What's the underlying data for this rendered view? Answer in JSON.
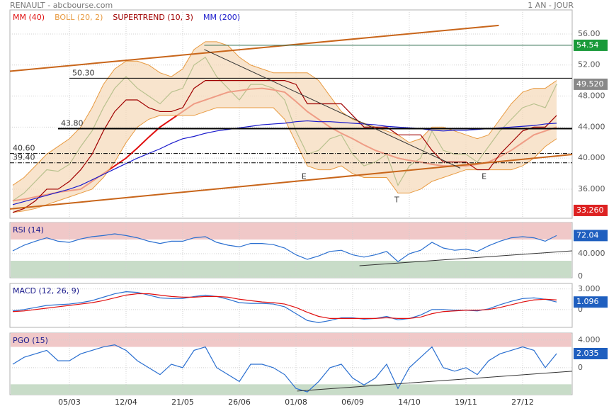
{
  "header": {
    "title": "RENAULT - abcbourse.com",
    "period": "1 AN - JOUR"
  },
  "chart_data": [
    {
      "type": "line",
      "x": [
        0,
        1,
        2,
        3,
        4,
        5,
        6,
        7,
        8,
        9,
        10,
        11,
        12,
        13,
        14,
        15,
        16,
        17,
        18,
        19,
        20,
        21,
        22,
        23,
        24,
        25,
        26,
        27,
        28,
        29,
        30,
        31,
        32,
        33,
        34,
        35,
        36,
        37,
        38,
        39,
        40,
        41,
        42,
        43,
        44,
        45,
        46,
        47,
        48
      ],
      "xlim": [
        -0.25,
        49.375
      ],
      "xticks": [
        {
          "value": 5,
          "label": "05/03"
        },
        {
          "value": 10,
          "label": "12/04"
        },
        {
          "value": 15,
          "label": "21/05"
        },
        {
          "value": 20,
          "label": "26/06"
        },
        {
          "value": 25,
          "label": "01/08"
        },
        {
          "value": 30,
          "label": "06/09"
        },
        {
          "value": 35,
          "label": "14/10"
        },
        {
          "value": 40,
          "label": "19/11"
        },
        {
          "value": 45,
          "label": "27/12"
        }
      ],
      "ylim": [
        32.25,
        59.1
      ],
      "yticks": [
        {
          "value": 36,
          "label": "36.000"
        },
        {
          "value": 40,
          "label": "40.000"
        },
        {
          "value": 44,
          "label": "44.000"
        },
        {
          "value": 48,
          "label": "48.000"
        },
        {
          "value": 52,
          "label": "52.00"
        },
        {
          "value": 56,
          "label": "56.00"
        }
      ],
      "grid": true,
      "series": [
        {
          "color": "#2e8b2e",
          "values": [
            34.5,
            35.5,
            37,
            38.5,
            38.3,
            39.2,
            41.5,
            43.5,
            46.5,
            49,
            50.5,
            49,
            48,
            47,
            48.5,
            49,
            52,
            53,
            50.5,
            49,
            47.5,
            49.5,
            49.5,
            49,
            47.5,
            43.5,
            40.5,
            41,
            42.5,
            43,
            40.5,
            39,
            39.5,
            40.5,
            36.5,
            39,
            40,
            43.5,
            41,
            40.5,
            40.5,
            39.5,
            41.5,
            43.5,
            45,
            46.5,
            47,
            46.5,
            49.52
          ]
        },
        {
          "name": "MM (40)",
          "color": "#e01010",
          "values": [
            34.5,
            34.7,
            35,
            35.3,
            35.6,
            35.8,
            36,
            37,
            38,
            39,
            40,
            41.3,
            42.7,
            44,
            45,
            46,
            47,
            47.5,
            48,
            48.5,
            48.7,
            48.9,
            49,
            48.8,
            48.5,
            47.3,
            46,
            45,
            44,
            43.2,
            42.5,
            41.7,
            41,
            40.5,
            40,
            39.7,
            39.5,
            39.2,
            39,
            39,
            39,
            39.2,
            39.5,
            40.2,
            41,
            42,
            43,
            43.5,
            44
          ]
        },
        {
          "name": "BOLL (20, 2)",
          "color": "#e89a40",
          "values": [
            36.5,
            37.5,
            39,
            40.5,
            41.5,
            42.5,
            44,
            46.5,
            49.5,
            51.5,
            52.5,
            52.5,
            52,
            51,
            50.5,
            51.5,
            54,
            55,
            55,
            54.5,
            53,
            52,
            51.5,
            51,
            51,
            51,
            51,
            50,
            48,
            46,
            45,
            44.5,
            44,
            43.5,
            43,
            42,
            42.5,
            44,
            44,
            43.5,
            43,
            42.5,
            43,
            45,
            47,
            48.5,
            49,
            49,
            50
          ],
          "lower": [
            33,
            33.2,
            33.5,
            34,
            34.5,
            35,
            35.5,
            36,
            37.5,
            39.5,
            42,
            44,
            45,
            45.5,
            45.5,
            45.5,
            45.5,
            46,
            46.5,
            46.5,
            46.5,
            46.5,
            46.5,
            46.5,
            45,
            42,
            39,
            38.5,
            38.5,
            39,
            38,
            37.5,
            37.5,
            37.5,
            35.5,
            35.5,
            36,
            37,
            37.5,
            38,
            38.5,
            38.5,
            38.5,
            38.5,
            38.5,
            39,
            40,
            41.5,
            42.5
          ]
        },
        {
          "name": "SUPERTREND (10, 3)",
          "color": "#a00000",
          "values": [
            33,
            33.5,
            34.5,
            36,
            36,
            37,
            38.5,
            40.5,
            43.5,
            46,
            47.5,
            47.5,
            46.5,
            46,
            46,
            46.5,
            49,
            50,
            50,
            50,
            50,
            50,
            50,
            50,
            50,
            49.5,
            47,
            47,
            47,
            47,
            45.5,
            44,
            44,
            44,
            43,
            43,
            43,
            41,
            39.5,
            39.5,
            39.5,
            38.5,
            38.5,
            40.5,
            42,
            43.5,
            44,
            44,
            45.5
          ]
        },
        {
          "name": "MM (200)",
          "color": "#1a1acc",
          "values": [
            34,
            34.4,
            34.8,
            35.2,
            35.6,
            36,
            36.5,
            37.2,
            37.9,
            38.6,
            39.3,
            40,
            40.6,
            41.2,
            41.9,
            42.5,
            42.8,
            43.2,
            43.5,
            43.7,
            43.9,
            44.1,
            44.3,
            44.4,
            44.5,
            44.7,
            44.8,
            44.7,
            44.7,
            44.6,
            44.5,
            44.4,
            44.3,
            44.1,
            44,
            43.9,
            43.8,
            43.6,
            43.5,
            43.6,
            43.6,
            43.7,
            43.8,
            43.9,
            44,
            44.1,
            44.2,
            44.4,
            44.5
          ]
        }
      ],
      "levels": [
        {
          "value": 50.3,
          "label": "50.30",
          "x0": 5,
          "style": "solid"
        },
        {
          "value": 43.8,
          "label": "43.80",
          "x0": 4,
          "style": "thick"
        },
        {
          "value": 40.6,
          "label": "40.60",
          "x0": -0.25,
          "style": "dashdot"
        },
        {
          "value": 39.4,
          "label": "39.40",
          "x0": -0.25,
          "style": "dashdot"
        }
      ],
      "trendlines": [
        {
          "x": [
            -0.25,
            42.9
          ],
          "y": [
            51.2,
            57.1
          ],
          "color": "#c8651a"
        },
        {
          "x": [
            -0.25,
            49.375
          ],
          "y": [
            33.45,
            40.47
          ],
          "color": "#c8651a"
        },
        {
          "x": [
            16.9,
            39.5
          ],
          "y": [
            54,
            38.7
          ],
          "color": "#333333"
        },
        {
          "x": [
            16.9,
            49.375
          ],
          "y": [
            54.54,
            54.54
          ],
          "color": "#2e6b4e"
        }
      ],
      "annotations": [
        {
          "text": "E",
          "x": 25.7,
          "y": 37.6
        },
        {
          "text": "T",
          "x": 33.9,
          "y": 34.6
        },
        {
          "text": "E",
          "x": 41.6,
          "y": 37.6
        }
      ],
      "price_labels": [
        {
          "value": 54.54,
          "label": "54.54",
          "color": "#1a9a3a"
        },
        {
          "value": 49.52,
          "label": "49.520",
          "color": "#888888"
        },
        {
          "value": 33.26,
          "label": "33.260",
          "color": "#dd2222"
        }
      ]
    },
    {
      "type": "line",
      "title": "RSI (14)",
      "ylim": [
        -2.5,
        95
      ],
      "yticks": [
        0,
        {
          "value": 40,
          "label": "40.000"
        }
      ],
      "bands": [
        {
          "from": 65,
          "to": 95,
          "color": "#f0c8c8"
        },
        {
          "from": -2.5,
          "to": 27.5,
          "color": "#c8dcc8"
        }
      ],
      "series": [
        {
          "color": "#2a6fd0",
          "values": [
            45,
            55,
            62,
            68,
            62,
            60,
            66,
            70,
            72,
            75,
            72,
            68,
            62,
            58,
            62,
            62,
            68,
            70,
            60,
            55,
            52,
            58,
            58,
            56,
            50,
            38,
            30,
            36,
            44,
            46,
            38,
            34,
            38,
            44,
            26,
            40,
            46,
            60,
            50,
            46,
            48,
            44,
            54,
            62,
            68,
            70,
            68,
            62,
            72.04
          ]
        }
      ],
      "trendlines": [
        {
          "x": [
            30.6,
            49.375
          ],
          "y": [
            18.75,
            45
          ],
          "color": "#333333"
        }
      ],
      "price_labels": [
        {
          "value": 72.04,
          "label": "72.04",
          "color": "#1f5fbf"
        }
      ]
    },
    {
      "type": "line",
      "title": "MACD (12, 26, 9)",
      "ylim": [
        -2.6,
        3.8
      ],
      "yticks": [
        0,
        {
          "value": 3,
          "label": "3.000"
        }
      ],
      "series": [
        {
          "color": "#2a6fd0",
          "values": [
            -0.2,
            0,
            0.3,
            0.6,
            0.7,
            0.8,
            1,
            1.3,
            1.8,
            2.3,
            2.6,
            2.5,
            2.1,
            1.7,
            1.6,
            1.6,
            1.9,
            2.1,
            1.9,
            1.5,
            1,
            0.9,
            0.9,
            0.8,
            0.4,
            -0.6,
            -1.6,
            -1.9,
            -1.6,
            -1.2,
            -1.2,
            -1.4,
            -1.3,
            -1,
            -1.5,
            -1.3,
            -0.8,
            0,
            0,
            -0.1,
            -0.1,
            -0.2,
            0.1,
            0.7,
            1.2,
            1.6,
            1.7,
            1.5,
            1.1
          ]
        },
        {
          "color": "#e01010",
          "values": [
            -0.3,
            -0.2,
            0,
            0.2,
            0.4,
            0.6,
            0.8,
            1,
            1.3,
            1.7,
            2.1,
            2.3,
            2.3,
            2.1,
            1.9,
            1.8,
            1.8,
            1.9,
            1.9,
            1.8,
            1.5,
            1.3,
            1.1,
            1,
            0.8,
            0.3,
            -0.4,
            -1,
            -1.3,
            -1.3,
            -1.3,
            -1.3,
            -1.3,
            -1.2,
            -1.3,
            -1.3,
            -1.1,
            -0.6,
            -0.3,
            -0.2,
            -0.1,
            -0.1,
            0,
            0.3,
            0.7,
            1.1,
            1.4,
            1.5,
            1.4
          ]
        }
      ],
      "price_labels": [
        {
          "value": 1.096,
          "label": "1.096",
          "color": "#1f5fbf"
        }
      ]
    },
    {
      "type": "line",
      "title": "PGO (15)",
      "ylim": [
        -3.9,
        5
      ],
      "yticks": [
        0,
        {
          "value": 4,
          "label": "4.000"
        }
      ],
      "bands": [
        {
          "from": 3,
          "to": 5,
          "color": "#f0c8c8"
        },
        {
          "from": -3.9,
          "to": -2.4,
          "color": "#c8dcc8"
        }
      ],
      "series": [
        {
          "color": "#2a6fd0",
          "values": [
            0.5,
            1.5,
            2,
            2.5,
            1,
            1,
            2,
            2.5,
            3,
            3.3,
            2.5,
            1,
            0,
            -1,
            0.5,
            0,
            2.5,
            3,
            0,
            -1,
            -2,
            0.5,
            0.5,
            0,
            -1,
            -3,
            -3.5,
            -2,
            0,
            0.5,
            -1.5,
            -2.5,
            -1.5,
            0.5,
            -3,
            0,
            1.5,
            3,
            0,
            -0.5,
            0,
            -1,
            1,
            2,
            2.5,
            3,
            2.5,
            0,
            2.035
          ]
        }
      ],
      "trendlines": [
        {
          "x": [
            25.1,
            49.375
          ],
          "y": [
            -3.38,
            -0.51
          ],
          "color": "#333333"
        }
      ],
      "price_labels": [
        {
          "value": 2.035,
          "label": "2.035",
          "color": "#1f5fbf"
        }
      ]
    }
  ]
}
